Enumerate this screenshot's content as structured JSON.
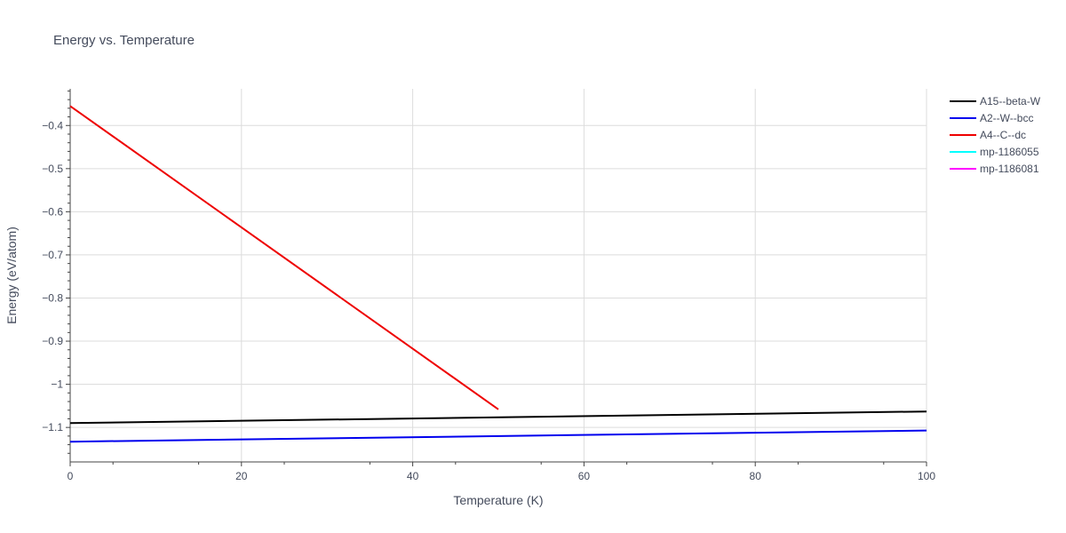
{
  "chart_data": {
    "type": "line",
    "title": "Energy vs. Temperature",
    "xlabel": "Temperature (K)",
    "ylabel": "Energy (eV/atom)",
    "xlim": [
      0,
      100
    ],
    "ylim": [
      -1.18,
      -0.315
    ],
    "xticks": [
      0,
      20,
      40,
      60,
      80,
      100
    ],
    "xtick_labels": [
      "0",
      "20",
      "40",
      "60",
      "80",
      "100"
    ],
    "yticks": [
      -0.4,
      -0.5,
      -0.6,
      -0.7,
      -0.8,
      -0.9,
      -1.0,
      -1.1
    ],
    "ytick_labels": [
      "−0.4",
      "−0.5",
      "−0.6",
      "−0.7",
      "−0.8",
      "−0.9",
      "−1",
      "−1.1"
    ],
    "grid": true,
    "legend_position": "top-right",
    "series": [
      {
        "name": "A15--beta-W",
        "color": "#000000",
        "x": [
          0,
          100
        ],
        "y": [
          -1.09,
          -1.063
        ]
      },
      {
        "name": "A2--W--bcc",
        "color": "#0000ee",
        "x": [
          0,
          100
        ],
        "y": [
          -1.133,
          -1.107
        ]
      },
      {
        "name": "A4--C--dc",
        "color": "#ee0000",
        "x": [
          0,
          50
        ],
        "y": [
          -0.355,
          -1.058
        ]
      },
      {
        "name": "mp-1186055",
        "color": "#00ffff",
        "x": [],
        "y": []
      },
      {
        "name": "mp-1186081",
        "color": "#ff00ff",
        "x": [],
        "y": []
      }
    ]
  }
}
